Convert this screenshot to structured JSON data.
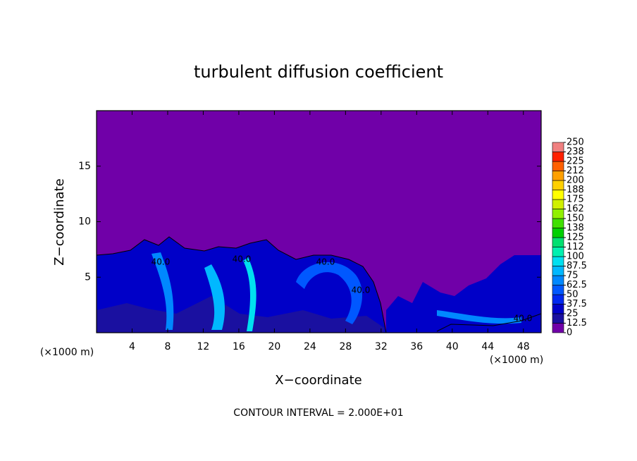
{
  "chart_data": {
    "type": "contour",
    "title": "turbulent diffusion coefficient",
    "x_label": "X−coordinate",
    "y_label": "Z−coordinate",
    "x_unit": "(×1000 m)",
    "x_unit_right": "(×1000 m)",
    "footer": "CONTOUR INTERVAL = 2.000E+01",
    "xlim": [
      0,
      50
    ],
    "ylim": [
      0,
      20
    ],
    "xticks": [
      4,
      8,
      12,
      16,
      20,
      24,
      28,
      32,
      36,
      40,
      44,
      48
    ],
    "yticks": [
      5,
      10,
      15
    ],
    "contour_labels": [
      "40.0",
      "40.0",
      "40.0",
      "40.0",
      "40.0"
    ],
    "colorbar": {
      "lim": [
        0,
        250
      ],
      "ticks": [
        0,
        12.5,
        25,
        37.5,
        50,
        62.5,
        75,
        87.5,
        100,
        {
          "value": 112.5,
          "label": "112"
        },
        125,
        {
          "value": 137.5,
          "label": "138"
        },
        150,
        {
          "value": 162.5,
          "label": "162"
        },
        175,
        {
          "value": 187.5,
          "label": "188"
        },
        200,
        {
          "value": 212.5,
          "label": "212"
        },
        225,
        {
          "value": 237.5,
          "label": "238"
        },
        250
      ],
      "colors": [
        "#7000a8",
        "#1a10a0",
        "#0000c8",
        "#0028f0",
        "#0058ff",
        "#0088ff",
        "#00b8ff",
        "#00e0f0",
        "#00f0b0",
        "#00e070",
        "#00d000",
        "#40e000",
        "#90f000",
        "#d0f000",
        "#ffff00",
        "#ffd000",
        "#ffa000",
        "#ff6000",
        "#ff2000",
        "#f08080"
      ]
    }
  }
}
